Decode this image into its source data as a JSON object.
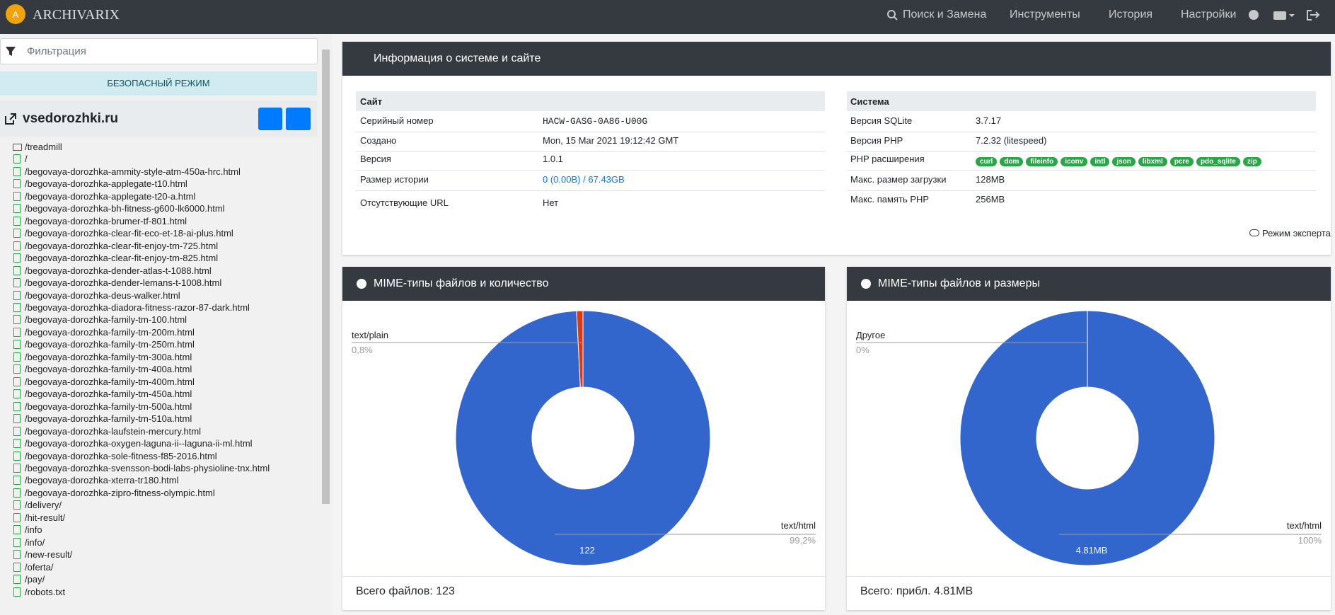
{
  "navbar": {
    "brand": "ARCHIVARIX",
    "items": [
      "Поиск и Замена",
      "Инструменты",
      "История",
      "Настройки"
    ]
  },
  "sidebar": {
    "filter_placeholder": "Фильтрация",
    "safe_mode": "БЕЗОПАСНЫЙ РЕЖИМ",
    "site": "vsedorozhki.ru",
    "tree_folder": "/treadmill",
    "tree_files": [
      "/",
      "/begovaya-dorozhka-ammity-style-atm-450a-hrc.html",
      "/begovaya-dorozhka-applegate-t10.html",
      "/begovaya-dorozhka-applegate-t20-a.html",
      "/begovaya-dorozhka-bh-fitness-g600-lk6000.html",
      "/begovaya-dorozhka-brumer-tf-801.html",
      "/begovaya-dorozhka-clear-fit-eco-et-18-ai-plus.html",
      "/begovaya-dorozhka-clear-fit-enjoy-tm-725.html",
      "/begovaya-dorozhka-clear-fit-enjoy-tm-825.html",
      "/begovaya-dorozhka-dender-atlas-t-1088.html",
      "/begovaya-dorozhka-dender-lemans-t-1008.html",
      "/begovaya-dorozhka-deus-walker.html",
      "/begovaya-dorozhka-diadora-fitness-razor-87-dark.html",
      "/begovaya-dorozhka-family-tm-100.html",
      "/begovaya-dorozhka-family-tm-200m.html",
      "/begovaya-dorozhka-family-tm-250m.html",
      "/begovaya-dorozhka-family-tm-300a.html",
      "/begovaya-dorozhka-family-tm-400a.html",
      "/begovaya-dorozhka-family-tm-400m.html",
      "/begovaya-dorozhka-family-tm-450a.html",
      "/begovaya-dorozhka-family-tm-500a.html",
      "/begovaya-dorozhka-family-tm-510a.html",
      "/begovaya-dorozhka-laufstein-mercury.html",
      "/begovaya-dorozhka-oxygen-laguna-ii--laguna-ii-ml.html",
      "/begovaya-dorozhka-sole-fitness-f85-2016.html",
      "/begovaya-dorozhka-svensson-bodi-labs-physioline-tnx.html",
      "/begovaya-dorozhka-xterra-tr180.html",
      "/begovaya-dorozhka-zipro-fitness-olympic.html",
      "/delivery/",
      "/hit-result/",
      "/info",
      "/info/",
      "/new-result/",
      "/oferta/",
      "/pay/",
      "/robots.txt"
    ]
  },
  "info": {
    "title": "Информация о системе и сайте",
    "expert_mode": "Режим эксперта",
    "site": {
      "header": "Сайт",
      "rows": [
        [
          "Серийный номер",
          "HACW-GASG-0A86-U00G"
        ],
        [
          "Создано",
          "Mon, 15 Mar 2021 19:12:42 GMT"
        ],
        [
          "Версия",
          "1.0.1"
        ],
        [
          "Размер истории",
          "0 (0.00B)",
          "67.43GB"
        ],
        [
          "Отсутствующие URL",
          "Нет"
        ]
      ]
    },
    "system": {
      "header": "Система",
      "rows": [
        [
          "Версия SQLite",
          "3.7.17"
        ],
        [
          "Версия PHP",
          "7.2.32 (litespeed)"
        ],
        [
          "PHP расширения"
        ],
        [
          "Макс. размер загрузки",
          "128MB"
        ],
        [
          "Макс. память PHP",
          "256MB"
        ]
      ],
      "extensions": [
        "curl",
        "dom",
        "fileinfo",
        "iconv",
        "intl",
        "json",
        "libxml",
        "pcre",
        "pdo_sqlite",
        "zip"
      ]
    }
  },
  "charts": [
    {
      "title": "MIME-типы файлов и количество",
      "footer": "Всего файлов: 123",
      "slices": [
        {
          "name": "text/html",
          "percent": 99.2,
          "percent_label": "99,2%",
          "value_label": "122",
          "color": "#3366cc"
        },
        {
          "name": "text/plain",
          "percent": 0.8,
          "percent_label": "0,8%",
          "color": "#dc3912"
        }
      ]
    },
    {
      "title": "MIME-типы файлов и размеры",
      "footer": "Всего: прибл. 4.81MB",
      "slices": [
        {
          "name": "text/html",
          "percent": 100,
          "percent_label": "100%",
          "value_label": "4.81MB",
          "color": "#3366cc"
        },
        {
          "name": "Другое",
          "percent": 0,
          "percent_label": "0%"
        }
      ]
    }
  ]
}
